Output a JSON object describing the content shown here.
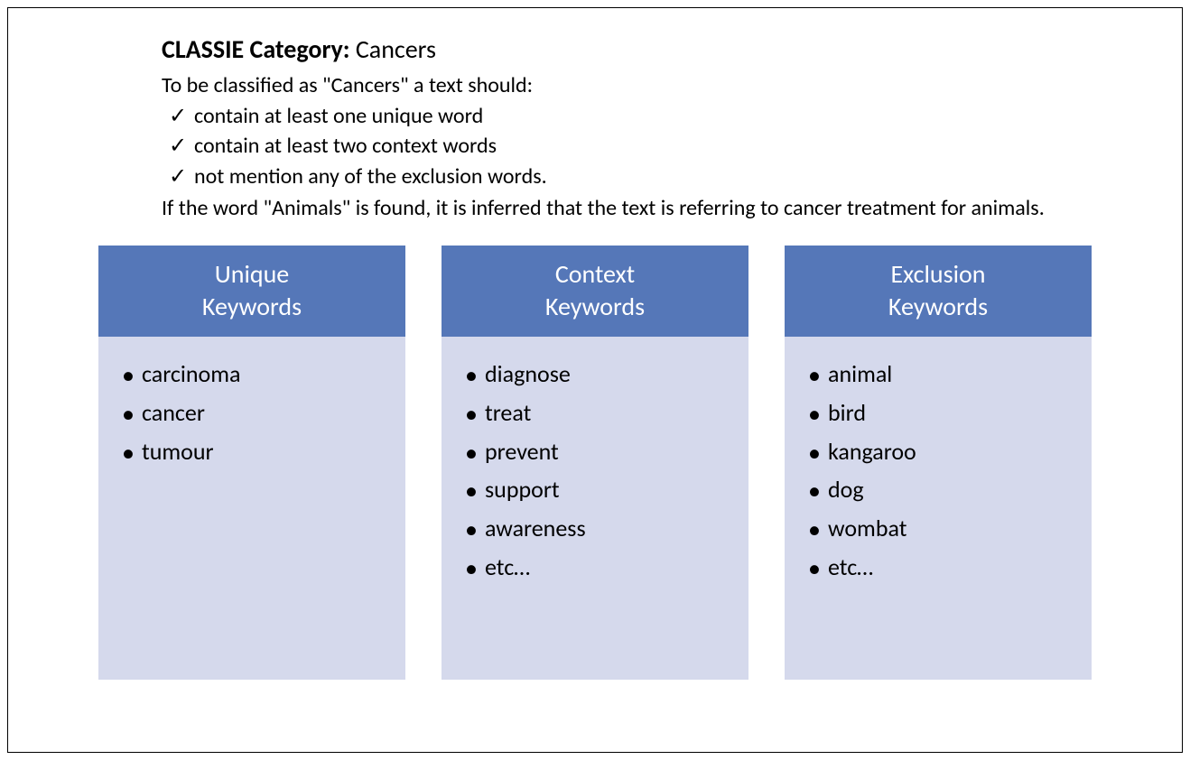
{
  "header": {
    "title_bold": "CLASSIE Category:",
    "title_value": "Cancers",
    "intro": "To be classified as \"Cancers\" a text should:",
    "rules": [
      "contain at least one unique word",
      "contain at least two context words",
      "not mention any of the exclusion words."
    ],
    "note": "If the word \"Animals\" is found, it is inferred that the text is referring to cancer treatment for animals."
  },
  "cards": [
    {
      "title": "Unique Keywords",
      "items": [
        "carcinoma",
        "cancer",
        "tumour"
      ]
    },
    {
      "title": "Context Keywords",
      "items": [
        "diagnose",
        "treat",
        "prevent",
        "support",
        "awareness",
        "etc…"
      ]
    },
    {
      "title": "Exclusion Keywords",
      "items": [
        "animal",
        "bird",
        "kangaroo",
        "dog",
        "wombat",
        "etc…"
      ]
    }
  ],
  "style": {
    "header_bg": "#5577b8",
    "body_bg": "#d5d9ec",
    "text_color": "#000000",
    "header_text_color": "#ffffff",
    "border_color": "#000000",
    "page_bg": "#ffffff"
  }
}
